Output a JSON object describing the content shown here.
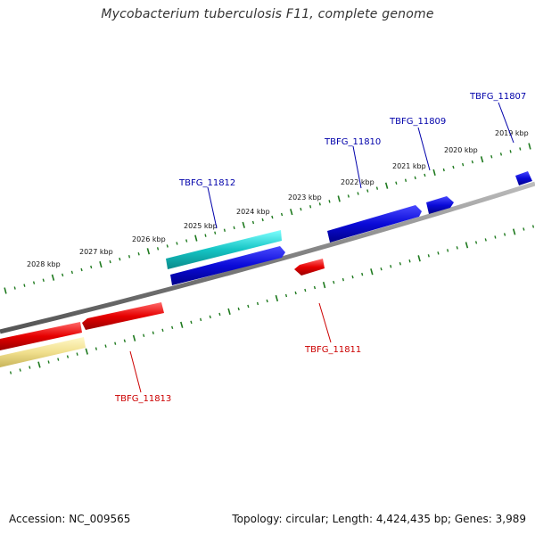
{
  "title": "Mycobacterium tuberculosis F11, complete genome",
  "footer": {
    "accession": "Accession: NC_009565",
    "summary": "Topology: circular; Length: 4,424,435 bp; Genes: 3,989"
  },
  "colors": {
    "backbone": "#7f7f7f",
    "tick": "#1f7a1f",
    "forward_gene": "#0a0ad8",
    "forward_gene_alt": "#15c4c4",
    "reverse_gene": "#e60000",
    "reverse_gene_alt": "#f1e08e",
    "forward_label": "#0000aa",
    "reverse_label": "#cc0000"
  },
  "scale_labels": [
    {
      "kbp": 2019,
      "text": "2019 kbp"
    },
    {
      "kbp": 2020,
      "text": "2020 kbp"
    },
    {
      "kbp": 2021,
      "text": "2021 kbp"
    },
    {
      "kbp": 2022,
      "text": "2022 kbp"
    },
    {
      "kbp": 2023,
      "text": "2023 kbp"
    },
    {
      "kbp": 2024,
      "text": "2024 kbp"
    },
    {
      "kbp": 2025,
      "text": "2025 kbp"
    },
    {
      "kbp": 2026,
      "text": "2026 kbp"
    },
    {
      "kbp": 2027,
      "text": "2027 kbp"
    },
    {
      "kbp": 2028,
      "text": "2028 kbp"
    }
  ],
  "gene_labels": [
    {
      "id": "TBFG_11807",
      "strand": "forward"
    },
    {
      "id": "TBFG_11809",
      "strand": "forward"
    },
    {
      "id": "TBFG_11810",
      "strand": "forward"
    },
    {
      "id": "TBFG_11811",
      "strand": "reverse"
    },
    {
      "id": "TBFG_11812",
      "strand": "forward"
    },
    {
      "id": "TBFG_11813",
      "strand": "reverse"
    }
  ]
}
